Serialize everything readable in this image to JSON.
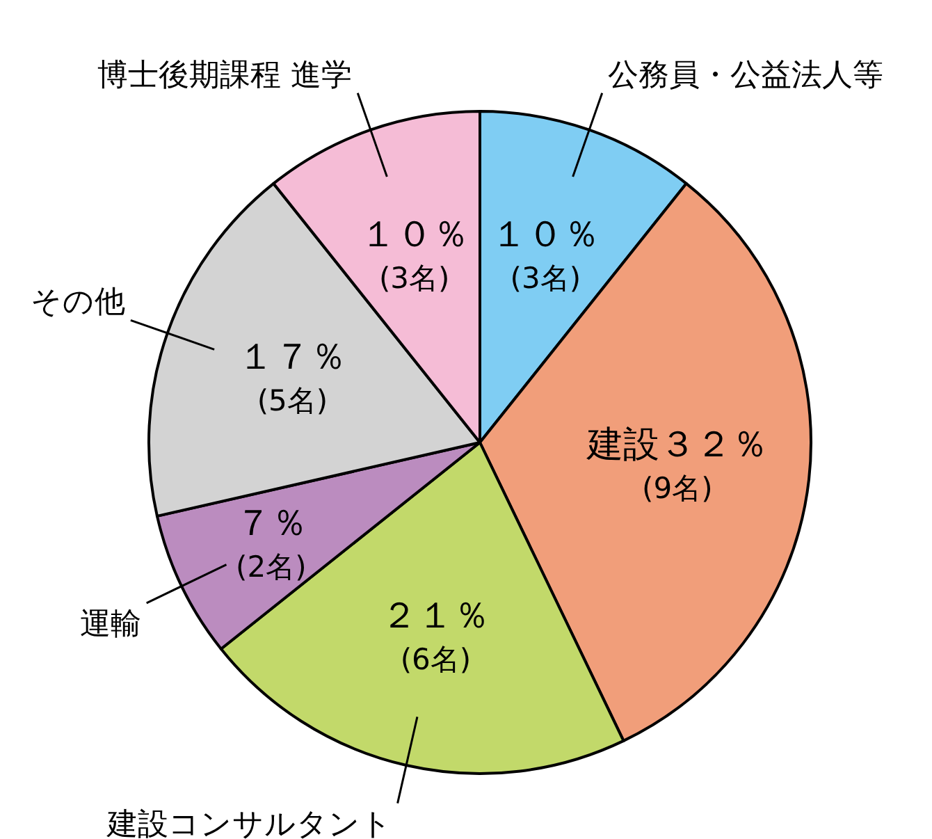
{
  "chart_data": {
    "type": "pie",
    "categories": [
      "公務員・公益法人等",
      "建設",
      "建設コンサルタント",
      "運輸",
      "その他",
      "博士後期課程 進学"
    ],
    "values": [
      3,
      9,
      6,
      2,
      5,
      3
    ],
    "value_labels": [
      "１０％ (3名)",
      "３２％ (9名)",
      "２１％ (6名)",
      "７％ (2名)",
      "１７％ (5名)",
      "１０％ (3名)"
    ],
    "colors": [
      "#7fcdf3",
      "#f19e7a",
      "#c2d96a",
      "#bb8cbf",
      "#d3d3d3",
      "#f5bcd6"
    ],
    "legend": false
  }
}
